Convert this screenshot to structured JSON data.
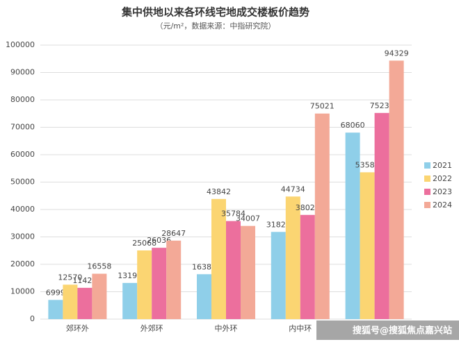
{
  "chart_data": {
    "type": "bar",
    "title": "集中供地以来各环线宅地成交楼板价趋势",
    "subtitle": "（元/m²，数据来源：中指研究院）",
    "categories": [
      "郊环外",
      "外郊环",
      "中外环",
      "内中环",
      null
    ],
    "series": [
      {
        "name": "2021",
        "color": "#8fcfe9",
        "values": [
          6999,
          13197,
          16385,
          31822,
          68060
        ]
      },
      {
        "name": "2022",
        "color": "#fbd572",
        "values": [
          12570,
          25068,
          43842,
          44734,
          53580
        ]
      },
      {
        "name": "2023",
        "color": "#ec6f9d",
        "values": [
          11423,
          26036,
          35784,
          38022,
          75236
        ]
      },
      {
        "name": "2024",
        "color": "#f3a997",
        "values": [
          16558,
          28647,
          34007,
          75021,
          94329
        ]
      }
    ],
    "ylim": [
      0,
      100000
    ],
    "yticks": [
      0,
      10000,
      20000,
      30000,
      40000,
      50000,
      60000,
      70000,
      80000,
      90000,
      100000
    ],
    "grid": true,
    "legend": "right",
    "annotation": "搜狐号@搜狐焦点嘉兴站"
  }
}
